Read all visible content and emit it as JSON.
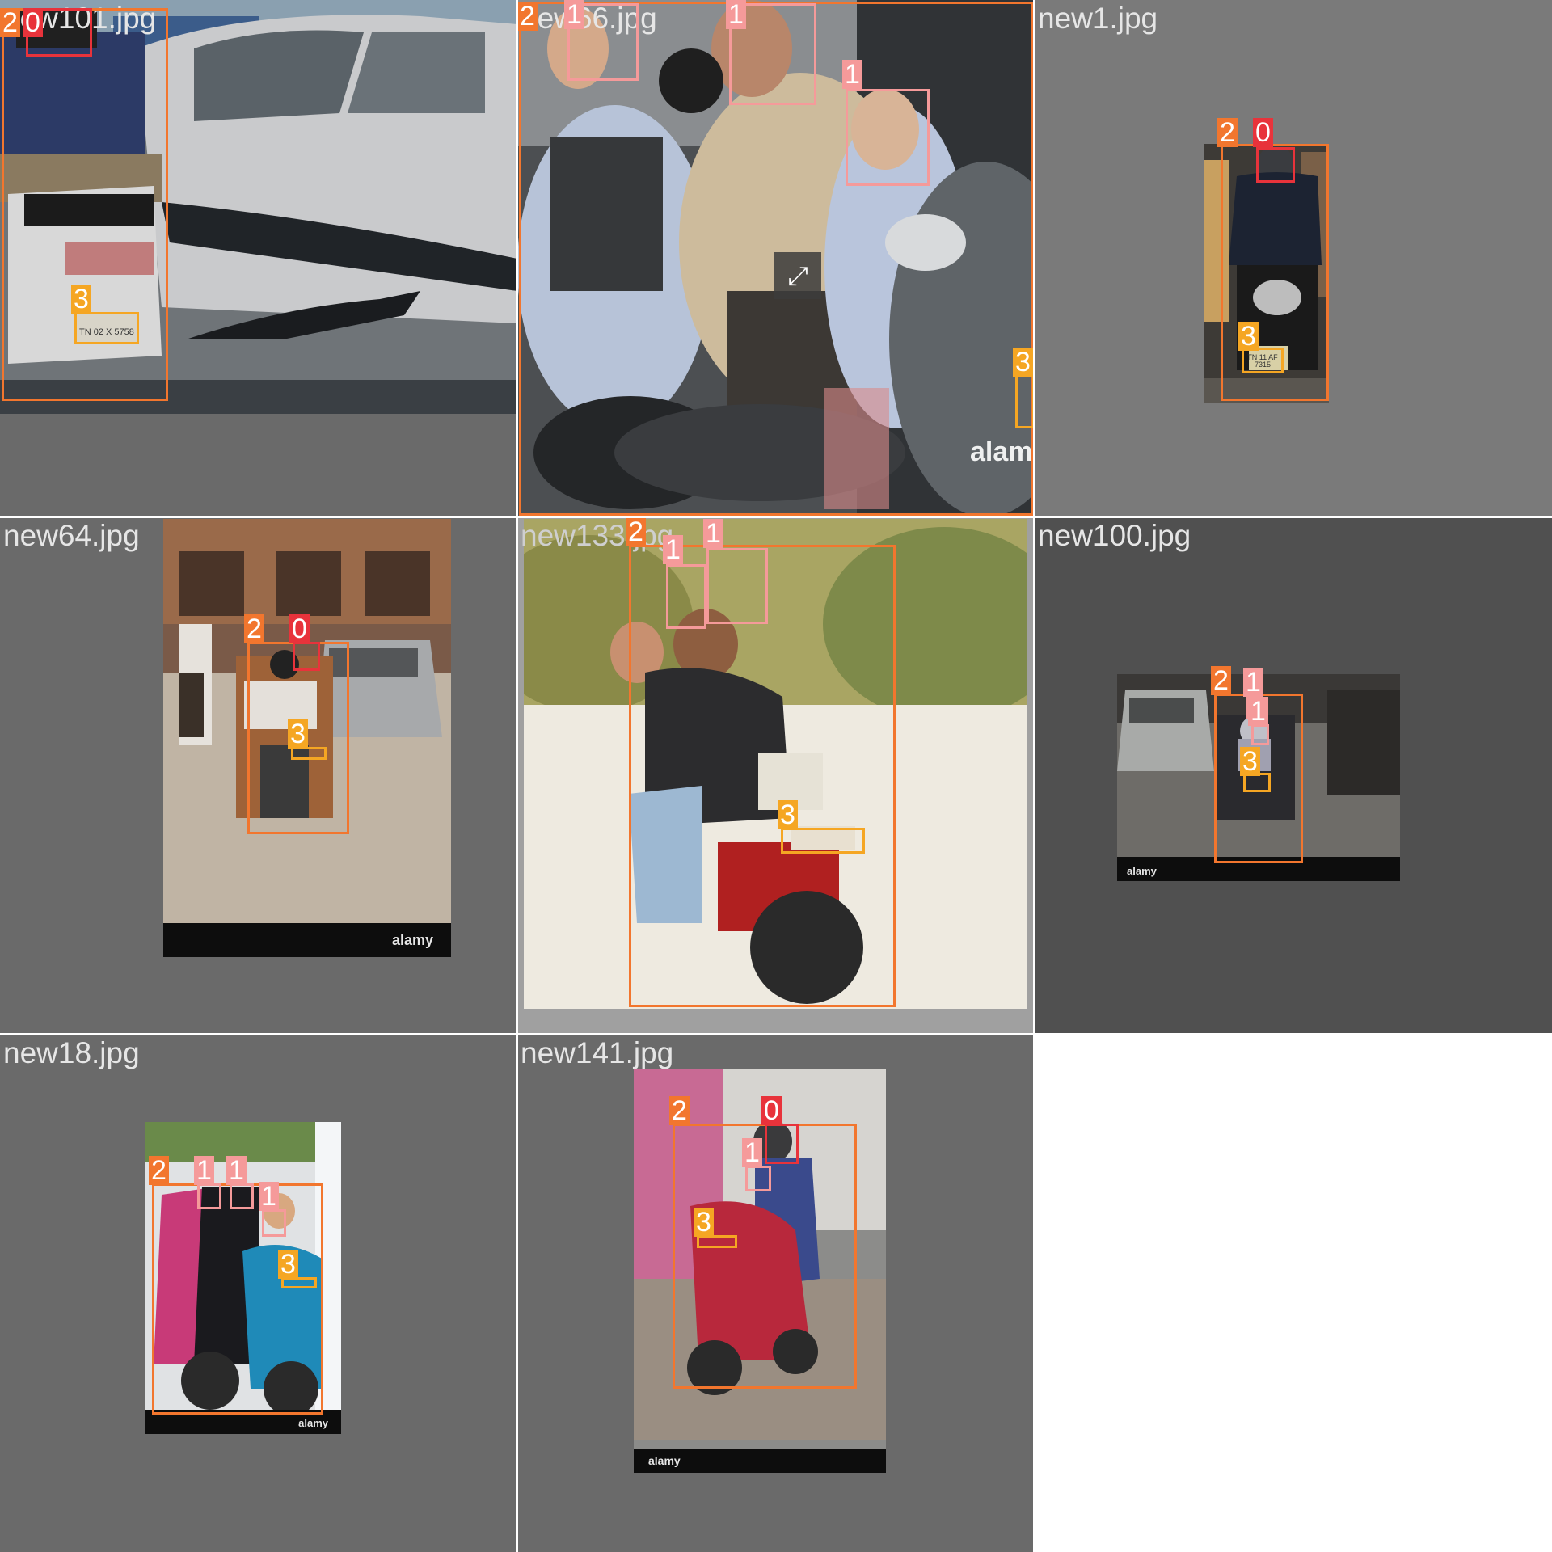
{
  "mosaic": {
    "tiles": [
      {
        "file": "new101.jpg",
        "labels": [
          "2",
          "0",
          "3"
        ]
      },
      {
        "file": "new66.jpg",
        "labels": [
          "2",
          "1",
          "1",
          "1",
          "3"
        ]
      },
      {
        "file": "new1.jpg",
        "labels": [
          "2",
          "0",
          "3"
        ]
      },
      {
        "file": "new64.jpg",
        "labels": [
          "2",
          "0",
          "3"
        ]
      },
      {
        "file": "new133.jpg",
        "labels": [
          "2",
          "1",
          "1",
          "3"
        ]
      },
      {
        "file": "new100.jpg",
        "labels": [
          "2",
          "1",
          "1",
          "3"
        ]
      },
      {
        "file": "new18.jpg",
        "labels": [
          "2",
          "1",
          "1",
          "1",
          "3"
        ]
      },
      {
        "file": "new141.jpg",
        "labels": [
          "2",
          "0",
          "1",
          "3"
        ]
      }
    ],
    "watermark": "alamy",
    "plates": {
      "new101": "TN 02 X 5758",
      "new1": "TN 11 AF 7315"
    }
  },
  "class_colors": {
    "0": "#e8333b",
    "1": "#f59a9a",
    "2": "#f2762e",
    "3": "#f5a623"
  }
}
